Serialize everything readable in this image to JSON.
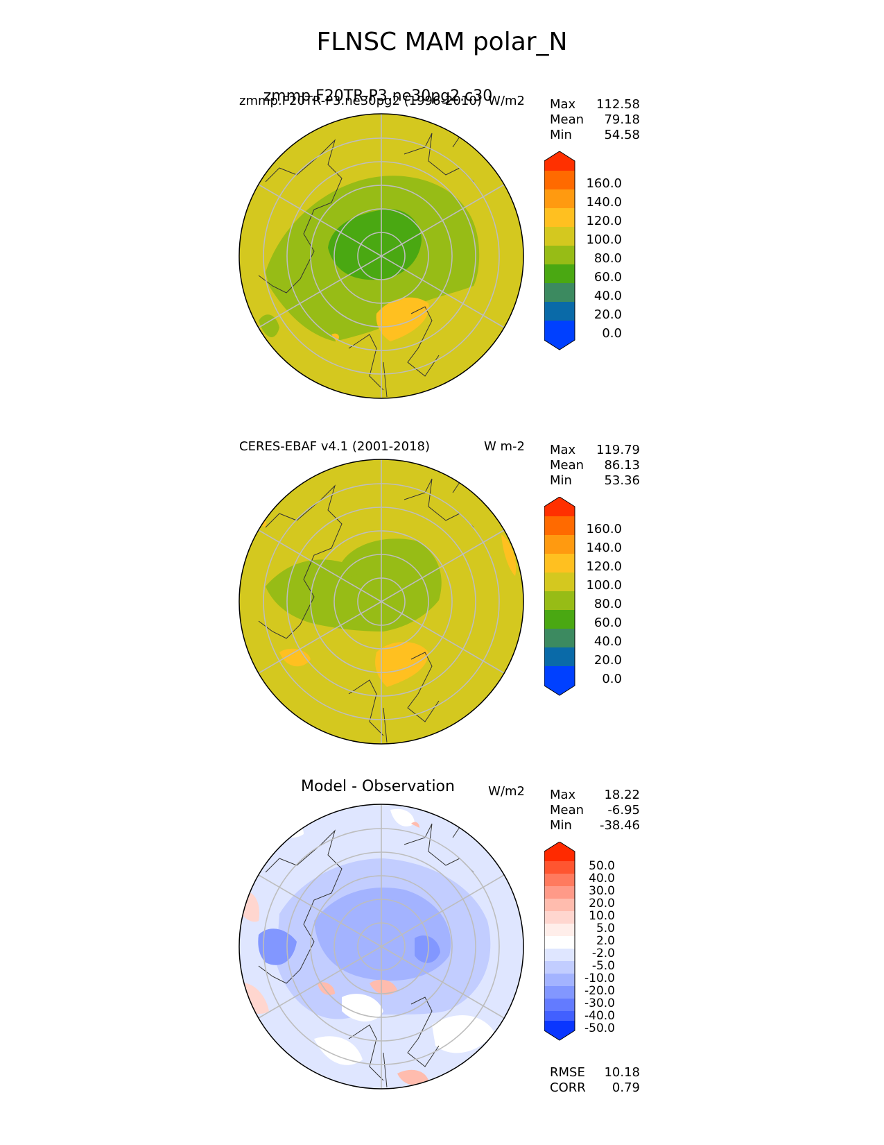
{
  "title": "FLNSC MAM polar_N",
  "panels": [
    {
      "id": "test",
      "left_title": "zmmp.F20TR-P3.ne30pg2 (1996-2010)",
      "center_title": "zmmp.F20TR-P3.ne30pg2.c30",
      "units": "W/m2",
      "stats": {
        "max_label": "Max",
        "max": "112.58",
        "mean_label": "Mean",
        "mean": "79.18",
        "min_label": "Min",
        "min": "54.58"
      },
      "colorbar": {
        "ticks": [
          "160.0",
          "140.0",
          "120.0",
          "100.0",
          "80.0",
          "60.0",
          "40.0",
          "20.0",
          "0.0"
        ],
        "colors": [
          "#ff3000",
          "#ff6a00",
          "#ff9a10",
          "#ffc020",
          "#d4c81f",
          "#97bc16",
          "#4aa812",
          "#3c8a60",
          "#0a6aa8",
          "#0040ff"
        ]
      }
    },
    {
      "id": "reference",
      "left_title": "CERES-EBAF v4.1 (2001-2018)",
      "center_title": "",
      "units": "W m-2",
      "stats": {
        "max_label": "Max",
        "max": "119.79",
        "mean_label": "Mean",
        "mean": "86.13",
        "min_label": "Min",
        "min": "53.36"
      },
      "colorbar": {
        "ticks": [
          "160.0",
          "140.0",
          "120.0",
          "100.0",
          "80.0",
          "60.0",
          "40.0",
          "20.0",
          "0.0"
        ],
        "colors": [
          "#ff3000",
          "#ff6a00",
          "#ff9a10",
          "#ffc020",
          "#d4c81f",
          "#97bc16",
          "#4aa812",
          "#3c8a60",
          "#0a6aa8",
          "#0040ff"
        ]
      }
    },
    {
      "id": "difference",
      "left_title": "",
      "center_title": "Model - Observation",
      "units": "W/m2",
      "stats": {
        "max_label": "Max",
        "max": "18.22",
        "mean_label": "Mean",
        "mean": "-6.95",
        "min_label": "Min",
        "min": "-38.46"
      },
      "colorbar": {
        "ticks": [
          "50.0",
          "40.0",
          "30.0",
          "20.0",
          "10.0",
          "5.0",
          "2.0",
          "-2.0",
          "-5.0",
          "-10.0",
          "-20.0",
          "-30.0",
          "-40.0",
          "-50.0"
        ],
        "colors": [
          "#ff2a00",
          "#ff5530",
          "#ff7a5e",
          "#ff9a88",
          "#ffbcae",
          "#ffd6cf",
          "#ffeeea",
          "#ffffff",
          "#dfe6ff",
          "#c2cdff",
          "#a3b3ff",
          "#8297ff",
          "#637bff",
          "#4260ff",
          "#0a36ff"
        ]
      }
    }
  ],
  "metrics": {
    "rmse_label": "RMSE",
    "rmse": "10.18",
    "corr_label": "CORR",
    "corr": "0.79"
  }
}
